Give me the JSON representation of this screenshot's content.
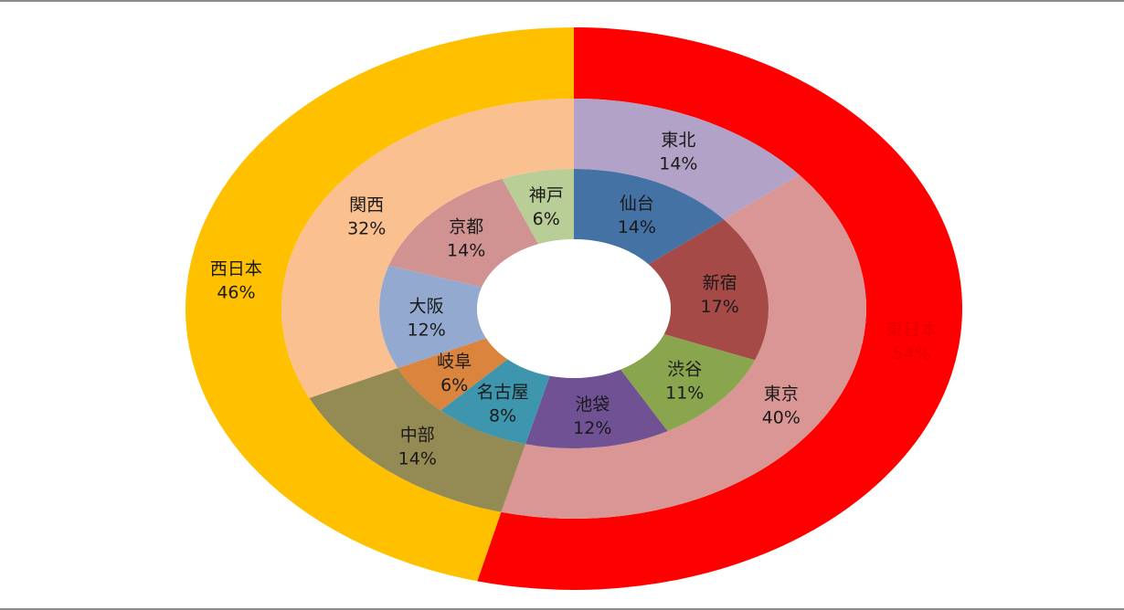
{
  "chart_data": {
    "type": "pie",
    "variant": "multi-level-doughnut",
    "title": "",
    "legend": "none",
    "colors": {
      "東日本": "#FF0000",
      "西日本": "#FFC000",
      "東北": "#B3A2C7",
      "東京": "#D99694",
      "中部": "#948A54",
      "関西": "#FAC090",
      "仙台": "#4472A4",
      "新宿": "#A64A47",
      "渋谷": "#89A54E",
      "池袋": "#6F5194",
      "名古屋": "#3D96AE",
      "岐阜": "#DB843D",
      "大阪": "#93A9CF",
      "京都": "#D19392",
      "神戸": "#B9CD96"
    },
    "rings": [
      {
        "level": "outer",
        "slices": [
          {
            "label": "東日本",
            "value": 54,
            "display": "54%"
          },
          {
            "label": "西日本",
            "value": 46,
            "display": "46%"
          }
        ]
      },
      {
        "level": "middle",
        "slices": [
          {
            "label": "東北",
            "value": 14,
            "display": "14%"
          },
          {
            "label": "東京",
            "value": 40,
            "display": "40%"
          },
          {
            "label": "中部",
            "value": 14,
            "display": "14%"
          },
          {
            "label": "関西",
            "value": 32,
            "display": "32%"
          }
        ]
      },
      {
        "level": "inner",
        "slices": [
          {
            "label": "仙台",
            "value": 14,
            "display": "14%"
          },
          {
            "label": "新宿",
            "value": 17,
            "display": "17%"
          },
          {
            "label": "渋谷",
            "value": 11,
            "display": "11%"
          },
          {
            "label": "池袋",
            "value": 12,
            "display": "12%"
          },
          {
            "label": "名古屋",
            "value": 8,
            "display": "8%"
          },
          {
            "label": "岐阜",
            "value": 6,
            "display": "6%"
          },
          {
            "label": "大阪",
            "value": 12,
            "display": "12%"
          },
          {
            "label": "京都",
            "value": 14,
            "display": "14%"
          },
          {
            "label": "神戸",
            "value": 6,
            "display": "6%"
          }
        ]
      }
    ]
  }
}
